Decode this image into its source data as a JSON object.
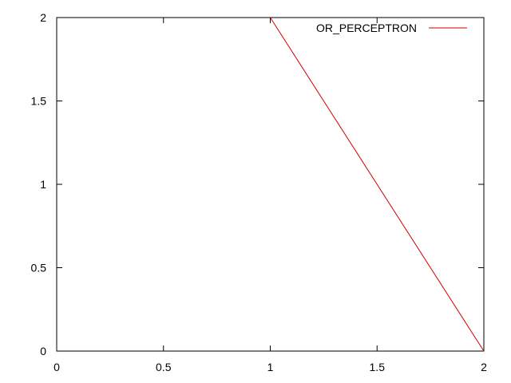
{
  "chart_data": {
    "type": "line",
    "title": "",
    "xlabel": "",
    "ylabel": "",
    "xlim": [
      0,
      2
    ],
    "ylim": [
      0,
      2
    ],
    "xticks": [
      0,
      0.5,
      1,
      1.5,
      2
    ],
    "yticks": [
      0,
      0.5,
      1,
      1.5,
      2
    ],
    "xtick_labels": [
      "0",
      "0.5",
      "1",
      "1.5",
      "2"
    ],
    "ytick_labels": [
      "0",
      "0.5",
      "1",
      "1.5",
      "2"
    ],
    "grid": false,
    "legend_position": "top-right",
    "series": [
      {
        "name": "OR_PERCEPTRON",
        "color": "#cc0000",
        "x": [
          1,
          2
        ],
        "y": [
          2,
          0
        ]
      }
    ]
  }
}
